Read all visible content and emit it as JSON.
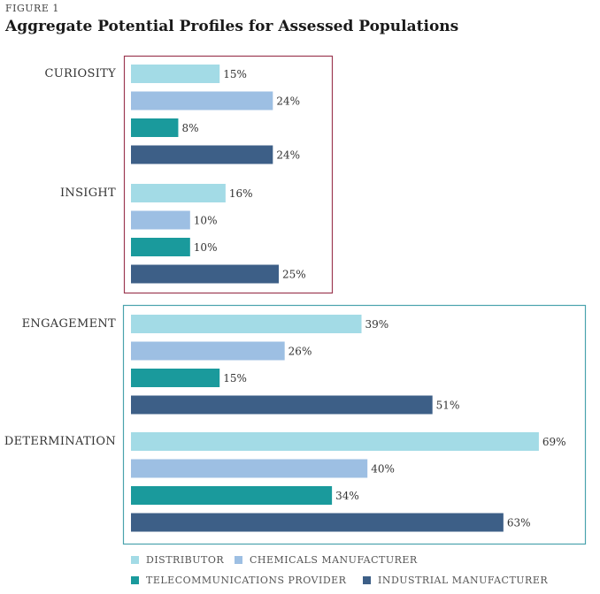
{
  "figure_label": "FIGURE 1",
  "chart_data": {
    "type": "bar",
    "orientation": "horizontal",
    "title": "Aggregate Potential Profiles for Assessed Populations",
    "value_suffix": "%",
    "xlim": [
      0,
      100
    ],
    "categories": [
      "CURIOSITY",
      "INSIGHT",
      "ENGAGEMENT",
      "DETERMINATION"
    ],
    "series": [
      {
        "name": "DISTRIBUTOR",
        "color": "#a3dbe6",
        "values": [
          15,
          16,
          39,
          69
        ]
      },
      {
        "name": "CHEMICALS MANUFACTURER",
        "color": "#9dbfe3",
        "values": [
          24,
          10,
          26,
          40
        ]
      },
      {
        "name": "TELECOMMUNICATIONS PROVIDER",
        "color": "#1a9a9c",
        "values": [
          8,
          10,
          15,
          34
        ]
      },
      {
        "name": "INDUSTRIAL MANUFACTURER",
        "color": "#3d5f87",
        "values": [
          24,
          25,
          51,
          63
        ]
      }
    ],
    "groups": [
      {
        "name": "group-1",
        "categories": [
          "CURIOSITY",
          "INSIGHT"
        ],
        "border_color": "#9c3a52"
      },
      {
        "name": "group-2",
        "categories": [
          "ENGAGEMENT",
          "DETERMINATION"
        ],
        "border_color": "#4aa3ad"
      }
    ]
  }
}
